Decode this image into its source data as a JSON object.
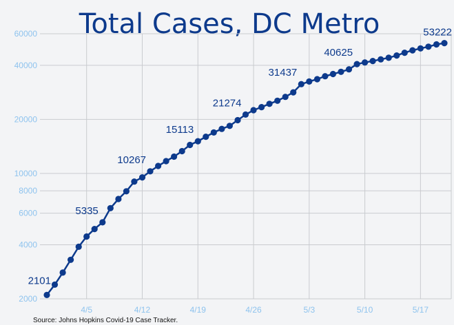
{
  "chart_data": {
    "type": "line",
    "title": "Total Cases, DC Metro",
    "source": "Source: Johns Hopkins Covid-19 Case Tracker.",
    "yscale": "log",
    "ylim": [
      2000,
      62000
    ],
    "grid": true,
    "legend": "none",
    "yticks": [
      2000,
      4000,
      6000,
      8000,
      10000,
      20000,
      40000,
      60000
    ],
    "xticks": [
      "4/5",
      "4/12",
      "4/19",
      "4/26",
      "5/3",
      "5/10",
      "5/17"
    ],
    "x_start": "3/31",
    "x_end": "5/21",
    "series": [
      {
        "values": [
          2101,
          2400,
          2800,
          3300,
          3900,
          4450,
          4900,
          5335,
          6400,
          7200,
          7950,
          9000,
          9500,
          10267,
          11000,
          11700,
          12400,
          13300,
          14400,
          15113,
          16000,
          16900,
          17700,
          18400,
          19800,
          21274,
          22500,
          23400,
          24400,
          25400,
          26700,
          28300,
          31437,
          32500,
          33500,
          34800,
          35800,
          36800,
          38000,
          40625,
          41500,
          42300,
          43200,
          44100,
          45400,
          47000,
          48500,
          49700,
          50800,
          52300,
          53222
        ]
      }
    ],
    "data_labels": [
      {
        "index": 0,
        "text": "2101"
      },
      {
        "index": 7,
        "text": "5335"
      },
      {
        "index": 13,
        "text": "10267"
      },
      {
        "index": 19,
        "text": "15113"
      },
      {
        "index": 25,
        "text": "21274"
      },
      {
        "index": 32,
        "text": "31437"
      },
      {
        "index": 39,
        "text": "40625"
      },
      {
        "index": 50,
        "text": "53222"
      }
    ],
    "colors": {
      "line": "#0d3a8c",
      "tick": "#8ec3ee",
      "title": "#0d3a8c",
      "grid": "#c9cbcf",
      "background": "#f3f4f6"
    }
  }
}
